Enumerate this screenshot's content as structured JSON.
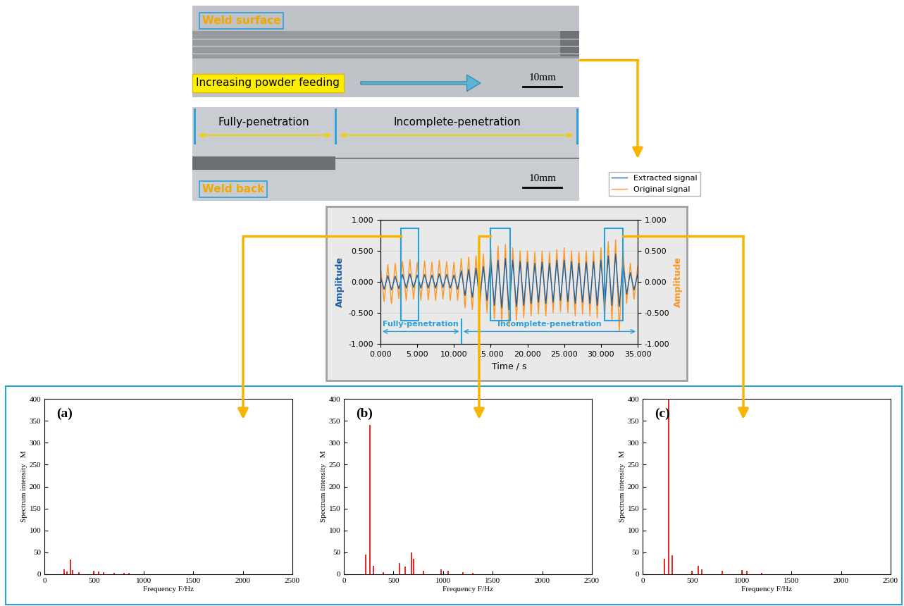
{
  "photos": [
    {
      "caption": "Weld surface",
      "annotation": "Increasing powder feeding",
      "scale_bar": "10mm"
    },
    {
      "caption": "Weld back",
      "regions": [
        "Fully-penetration",
        "Incomplete-penetration"
      ],
      "scale_bar": "10mm"
    }
  ],
  "chart_data": [
    {
      "type": "line",
      "xlabel": "Time / s",
      "ylabel": "Amplitude",
      "y2label": "Amplitude",
      "x": [
        0,
        0.5,
        1,
        1.5,
        2,
        2.5,
        3,
        3.5,
        4,
        4.5,
        5,
        5.5,
        6,
        6.5,
        7,
        7.5,
        8,
        8.5,
        9,
        9.5,
        10,
        10.5,
        11,
        11.5,
        12,
        12.5,
        13,
        13.5,
        14,
        14.5,
        15,
        15.5,
        16,
        16.5,
        17,
        17.5,
        18,
        18.5,
        19,
        19.5,
        20,
        20.5,
        21,
        21.5,
        22,
        22.5,
        23,
        23.5,
        24,
        24.5,
        25,
        25.5,
        26,
        26.5,
        27,
        27.5,
        28,
        28.5,
        29,
        29.5,
        30,
        30.5,
        31,
        31.5,
        32,
        32.5,
        33,
        33.5,
        34,
        34.5,
        35
      ],
      "series": [
        {
          "name": "Extracted signal",
          "color": "#1a5fa3",
          "values": [
            0.08,
            -0.12,
            0.1,
            -0.13,
            0.09,
            -0.11,
            0.12,
            -0.1,
            0.13,
            -0.09,
            0.11,
            -0.1,
            0.12,
            -0.1,
            0.11,
            -0.1,
            0.13,
            -0.09,
            0.12,
            -0.1,
            0.11,
            -0.12,
            0.18,
            -0.22,
            0.2,
            -0.25,
            0.22,
            -0.28,
            0.25,
            -0.3,
            0.35,
            -0.38,
            0.35,
            -0.42,
            0.38,
            -0.45,
            0.35,
            -0.4,
            0.33,
            -0.38,
            0.32,
            -0.35,
            0.3,
            -0.33,
            0.32,
            -0.35,
            0.3,
            -0.33,
            0.35,
            -0.3,
            0.35,
            -0.32,
            0.33,
            -0.35,
            0.3,
            -0.33,
            0.32,
            -0.35,
            0.33,
            -0.38,
            0.35,
            -0.4,
            0.42,
            -0.38,
            0.45,
            -0.4,
            0.3,
            -0.2,
            0.15,
            -0.13,
            0.12
          ]
        },
        {
          "name": "Original signal",
          "color": "#ff961e",
          "axis": "y2",
          "values": [
            0.25,
            -0.32,
            0.28,
            -0.35,
            0.3,
            -0.27,
            0.33,
            -0.3,
            0.36,
            -0.28,
            0.31,
            -0.3,
            0.34,
            -0.29,
            0.32,
            -0.3,
            0.35,
            -0.28,
            0.33,
            -0.3,
            0.32,
            -0.3,
            0.38,
            -0.42,
            0.4,
            -0.45,
            0.42,
            -0.48,
            0.45,
            -0.5,
            0.55,
            -0.6,
            0.58,
            -0.65,
            0.6,
            -0.72,
            0.55,
            -0.62,
            0.5,
            -0.58,
            0.5,
            -0.55,
            0.48,
            -0.52,
            0.5,
            -0.55,
            0.48,
            -0.5,
            0.52,
            -0.48,
            0.55,
            -0.5,
            0.5,
            -0.55,
            0.48,
            -0.52,
            0.5,
            -0.55,
            0.5,
            -0.58,
            0.55,
            -0.6,
            0.65,
            -0.62,
            0.68,
            -0.8,
            0.55,
            -0.35,
            0.3,
            -0.28,
            0.25
          ]
        }
      ],
      "xlim": [
        0,
        35
      ],
      "ylim": [
        -1,
        1
      ],
      "y2lim": [
        -1,
        1
      ],
      "xticks": [
        {
          "value": 0,
          "label": "0.000"
        },
        {
          "value": 5,
          "label": "5.000"
        },
        {
          "value": 10,
          "label": "10.000"
        },
        {
          "value": 15,
          "label": "15.000"
        },
        {
          "value": 20,
          "label": "20.000"
        },
        {
          "value": 25,
          "label": "25.000"
        },
        {
          "value": 30,
          "label": "30.000"
        },
        {
          "value": 35,
          "label": "35.000"
        }
      ],
      "yticks": [
        {
          "value": -1,
          "label": "-1.000"
        },
        {
          "value": -0.5,
          "label": "-0.500"
        },
        {
          "value": 0,
          "label": "0.000"
        },
        {
          "value": 0.5,
          "label": "0.500"
        },
        {
          "value": 1,
          "label": "1.000"
        }
      ],
      "y2ticks": [
        {
          "value": -1,
          "label": "-1.000"
        },
        {
          "value": -0.5,
          "label": "-0.500"
        },
        {
          "value": 0,
          "label": "0.000"
        },
        {
          "value": 0.5,
          "label": "0.500"
        },
        {
          "value": 1,
          "label": "1.000"
        }
      ],
      "grid": true,
      "legend": "upper right",
      "segments": [
        {
          "label": "Fully-penetration",
          "range": [
            0,
            11
          ]
        },
        {
          "label": "Incomplete-penetration",
          "range": [
            11,
            35
          ]
        }
      ],
      "windows": [
        [
          2.8,
          5.2
        ],
        [
          15,
          17.6
        ],
        [
          30.5,
          33
        ]
      ]
    },
    {
      "type": "stem",
      "title": "(a)",
      "xlabel": "Frequency F/Hz",
      "ylabel": "Spectrum intensity   M",
      "color": "#e00000",
      "x": [
        200,
        230,
        260,
        285,
        350,
        500,
        550,
        600,
        700,
        800,
        850
      ],
      "values": [
        12,
        6,
        33,
        10,
        5,
        8,
        6,
        5,
        4,
        3,
        3
      ],
      "xlim": [
        0,
        2500
      ],
      "xticks": [
        0,
        500,
        1000,
        1500,
        2000,
        2500
      ],
      "ylim": [
        0,
        400
      ],
      "yticks": [
        0,
        50,
        100,
        150,
        200,
        250,
        300,
        350,
        400
      ]
    },
    {
      "type": "stem",
      "title": "(b)",
      "xlabel": "Frequency F/Hz",
      "ylabel": "Spectrum intensity   M",
      "color": "#e00000",
      "x": [
        220,
        260,
        300,
        400,
        560,
        620,
        680,
        700,
        800,
        980,
        1050,
        1200,
        1300
      ],
      "values": [
        45,
        340,
        20,
        5,
        25,
        18,
        50,
        35,
        8,
        12,
        8,
        5,
        4
      ],
      "xlim": [
        0,
        2500
      ],
      "xticks": [
        0,
        500,
        1000,
        1500,
        2000,
        2500
      ],
      "ylim": [
        0,
        400
      ],
      "yticks": [
        0,
        50,
        100,
        150,
        200,
        250,
        300,
        350,
        400
      ]
    },
    {
      "type": "stem",
      "title": "(c)",
      "xlabel": "Frequency F/Hz",
      "ylabel": "Spectrum intensity   M",
      "color": "#e00000",
      "x": [
        220,
        260,
        300,
        500,
        560,
        600,
        800,
        1000,
        1050,
        1200
      ],
      "values": [
        35,
        398,
        43,
        8,
        20,
        12,
        8,
        10,
        8,
        4
      ],
      "xlim": [
        0,
        2500
      ],
      "xticks": [
        0,
        500,
        1000,
        1500,
        2000,
        2500
      ],
      "ylim": [
        0,
        400
      ],
      "yticks": [
        0,
        50,
        100,
        150,
        200,
        250,
        300,
        350,
        400
      ]
    }
  ]
}
